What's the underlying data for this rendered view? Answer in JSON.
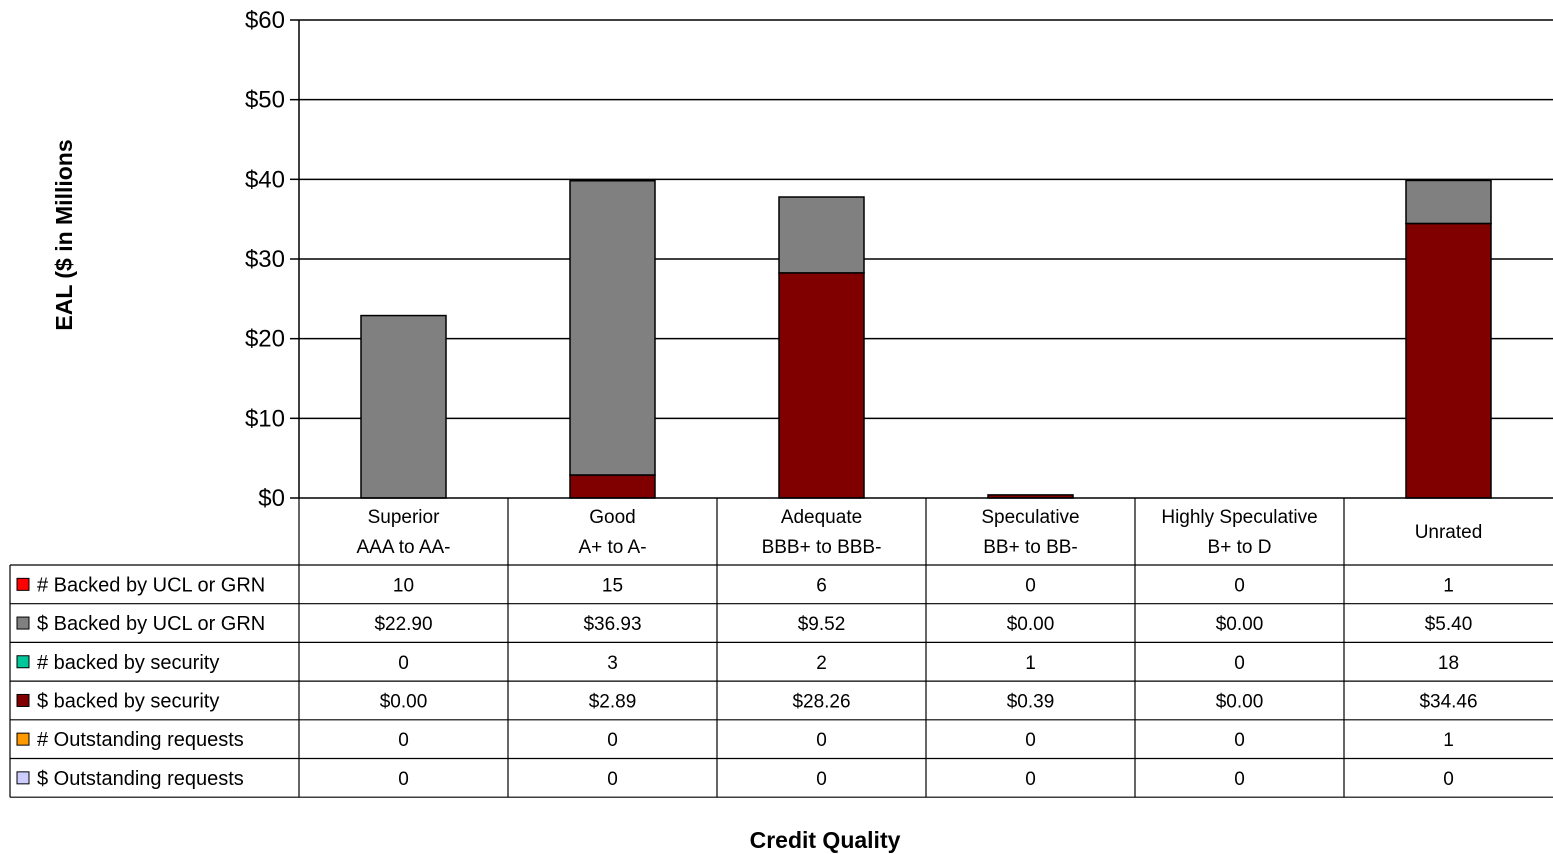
{
  "chart_data": {
    "type": "bar",
    "stacked": true,
    "ylabel": "EAL ($ in Millions",
    "xlabel": "Credit Quality",
    "ylim": [
      0,
      60
    ],
    "yticks": [
      0,
      10,
      20,
      30,
      40,
      50,
      60
    ],
    "ytick_labels": [
      "$0",
      "$10",
      "$20",
      "$30",
      "$40",
      "$50",
      "$60"
    ],
    "grid": true,
    "categories": [
      {
        "line1": "Superior",
        "line2": "AAA to AA-"
      },
      {
        "line1": "Good",
        "line2": "A+ to A-"
      },
      {
        "line1": "Adequate",
        "line2": "BBB+ to BBB-"
      },
      {
        "line1": "Speculative",
        "line2": "BB+ to BB-"
      },
      {
        "line1": "Highly Speculative",
        "line2": "B+ to D"
      },
      {
        "line1": "",
        "line2": "Unrated"
      }
    ],
    "stack_order": [
      "$ backed by security",
      "$ Backed by UCL or GRN"
    ],
    "table_rows": [
      {
        "label": "# Backed by UCL or GRN",
        "color": "#ff0000",
        "values": [
          "10",
          "15",
          "6",
          "0",
          "0",
          "1"
        ]
      },
      {
        "label": "$ Backed by UCL or GRN",
        "color": "#808080",
        "values": [
          "$22.90",
          "$36.93",
          "$9.52",
          "$0.00",
          "$0.00",
          "$5.40"
        ]
      },
      {
        "label": "# backed by security",
        "color": "#00c89a",
        "values": [
          "0",
          "3",
          "2",
          "1",
          "0",
          "18"
        ]
      },
      {
        "label": "$ backed by security",
        "color": "#800000",
        "values": [
          "$0.00",
          "$2.89",
          "$28.26",
          "$0.39",
          "$0.00",
          "$34.46"
        ]
      },
      {
        "label": "# Outstanding requests",
        "color": "#ff9900",
        "values": [
          "0",
          "0",
          "0",
          "0",
          "0",
          "1"
        ]
      },
      {
        "label": "$ Outstanding requests",
        "color": "#ccccff",
        "values": [
          "0",
          "0",
          "0",
          "0",
          "0",
          "0"
        ]
      }
    ],
    "series": [
      {
        "name": "$ backed by security",
        "color": "#800000",
        "values": [
          0.0,
          2.89,
          28.26,
          0.39,
          0.0,
          34.46
        ]
      },
      {
        "name": "$ Backed by UCL or GRN",
        "color": "#808080",
        "values": [
          22.9,
          36.93,
          9.52,
          0.0,
          0.0,
          5.4
        ]
      }
    ]
  }
}
